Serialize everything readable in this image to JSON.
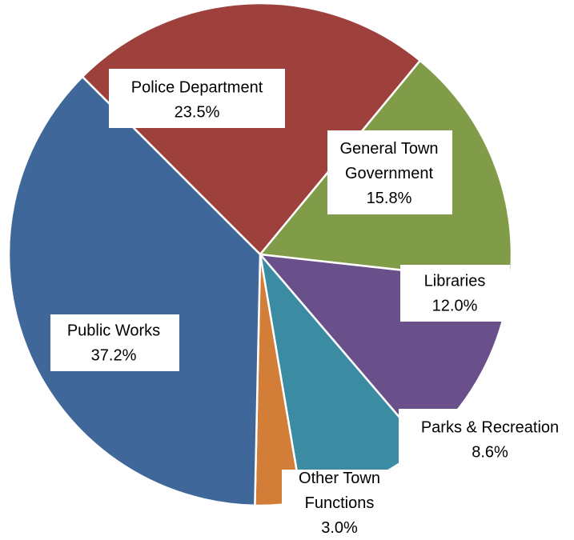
{
  "chart_data": {
    "type": "pie",
    "title": "",
    "slices": [
      {
        "label": "Police Department",
        "value": 23.5,
        "value_label": "23.5%",
        "color": "#9E403C"
      },
      {
        "label": "General Town Government",
        "value": 15.8,
        "value_label": "15.8%",
        "color": "#809C48"
      },
      {
        "label": "Libraries",
        "value": 12.0,
        "value_label": "12.0%",
        "color": "#6A508A"
      },
      {
        "label": "Parks & Recreation",
        "value": 8.6,
        "value_label": "8.6%",
        "color": "#3B8BA3"
      },
      {
        "label": "Other Town Functions",
        "value": 3.0,
        "value_label": "3.0%",
        "color": "#D27E39"
      },
      {
        "label": "Public Works",
        "value": 37.2,
        "value_label": "37.2%",
        "color": "#3F679A"
      }
    ],
    "start_angle_deg": -45,
    "direction": "clockwise",
    "legend": "none",
    "data_labels": "category-and-percent"
  }
}
